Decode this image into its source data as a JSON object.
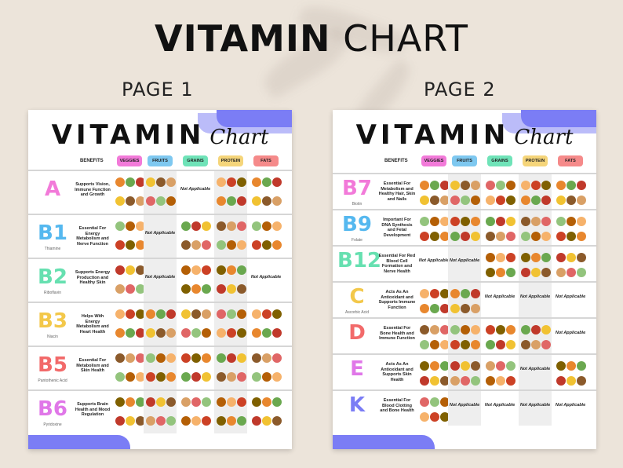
{
  "title": {
    "bold": "VITAMIN",
    "light": "CHART"
  },
  "page_labels": [
    "PAGE 1",
    "PAGE 2"
  ],
  "sheet": {
    "title_bold": "VITAMIN",
    "title_script": "Chart",
    "benefits_header": "BENEFITS",
    "categories": [
      {
        "label": "VEGGIES",
        "color": "#f27ad9"
      },
      {
        "label": "FRUITS",
        "color": "#7ec8f0"
      },
      {
        "label": "GRAINS",
        "color": "#6fe3b8"
      },
      {
        "label": "PROTEIN",
        "color": "#f5d57a"
      },
      {
        "label": "FATS",
        "color": "#f58a8a"
      }
    ],
    "accent": "#7b7df5"
  },
  "page1_rows": [
    {
      "letter": "A",
      "sub": "",
      "color": "#f27ad9",
      "benefit": "Supports Vision, Immune Function and Growth",
      "na_cols": [
        2
      ],
      "na_text": "Not Applicable"
    },
    {
      "letter": "B1",
      "sub": "Thiamine",
      "color": "#55b8ef",
      "benefit": "Essential For Energy Metabolism and Nerve Function",
      "na_cols": [
        1
      ],
      "na_text": "Not Applicable"
    },
    {
      "letter": "B2",
      "sub": "Riboflavin",
      "color": "#66e0b0",
      "benefit": "Supports Energy Production and Healthy Skin",
      "na_cols": [
        1,
        4
      ],
      "na_text": "Not Applicable"
    },
    {
      "letter": "B3",
      "sub": "Niacin",
      "color": "#f3c84a",
      "benefit": "Helps With Energy Metabolism and Heart Health",
      "na_cols": [],
      "na_text": "Not Applicable"
    },
    {
      "letter": "B5",
      "sub": "Pantothenic Acid",
      "color": "#f26a6a",
      "benefit": "Essential For Metabolism and Skin Health",
      "na_cols": [],
      "na_text": "Not Applicable"
    },
    {
      "letter": "B6",
      "sub": "Pyridoxine",
      "color": "#e077e8",
      "benefit": "Supports Brain Health and Mood Regulation",
      "na_cols": [],
      "na_text": "Not Applicable"
    }
  ],
  "page2_rows": [
    {
      "letter": "B7",
      "sub": "Biotin",
      "color": "#f27ad9",
      "benefit": "Essential For Metabolism and Healthy Hair, Skin and Nails",
      "na_cols": [],
      "na_text": "Not Applicable"
    },
    {
      "letter": "B9",
      "sub": "Folate",
      "color": "#55b8ef",
      "benefit": "Important For DNA Synthesis and Fetal Development",
      "na_cols": [],
      "na_text": "Not Applicable"
    },
    {
      "letter": "B12",
      "sub": "",
      "color": "#66e0b0",
      "benefit": "Essential For Red Blood Cell Formation and Nerve Health",
      "na_cols": [
        0,
        1
      ],
      "na_text": "Not Applicable"
    },
    {
      "letter": "C",
      "sub": "Ascorbic Acid",
      "color": "#f3c84a",
      "benefit": "Acts As An Antioxidant and Supports Immune Function",
      "na_cols": [
        2,
        3,
        4
      ],
      "na_text": "Not Applicable"
    },
    {
      "letter": "D",
      "sub": "",
      "color": "#f26a6a",
      "benefit": "Essential For Bone Health and Immune Function",
      "na_cols": [
        4
      ],
      "na_text": "Not Applicable"
    },
    {
      "letter": "E",
      "sub": "",
      "color": "#e077e8",
      "benefit": "Acts As An Antioxidant and Supports Skin Health",
      "na_cols": [
        3
      ],
      "na_text": "Not Applicable"
    },
    {
      "letter": "K",
      "sub": "",
      "color": "#7b7df5",
      "benefit": "Essential For Blood Clotting and Bone Health",
      "na_cols": [
        1,
        2,
        3,
        4
      ],
      "na_text": "Not Applicable"
    }
  ],
  "food_palette": [
    "#e8872e",
    "#6aa84f",
    "#c0392b",
    "#f1c232",
    "#8b5a2b",
    "#d9a066",
    "#e06666",
    "#93c47d",
    "#b45f06",
    "#f6b26b",
    "#cc4125",
    "#7f6000"
  ]
}
